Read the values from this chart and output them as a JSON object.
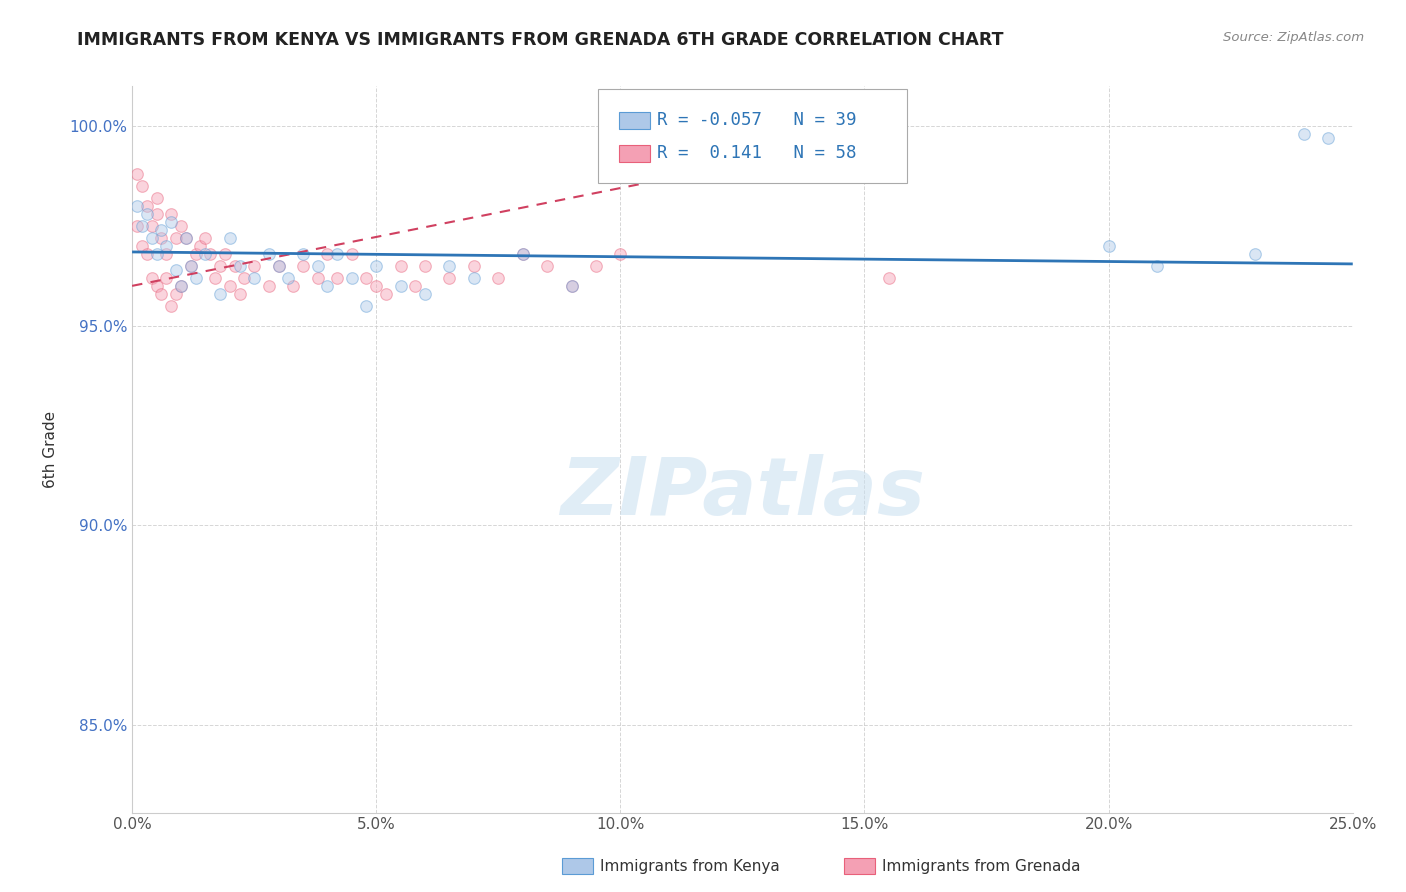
{
  "title": "IMMIGRANTS FROM KENYA VS IMMIGRANTS FROM GRENADA 6TH GRADE CORRELATION CHART",
  "source": "Source: ZipAtlas.com",
  "ylabel": "6th Grade",
  "xlim": [
    0.0,
    0.25
  ],
  "ylim": [
    0.828,
    1.01
  ],
  "x_ticks": [
    0.0,
    0.05,
    0.1,
    0.15,
    0.2,
    0.25
  ],
  "x_tick_labels": [
    "0.0%",
    "5.0%",
    "10.0%",
    "15.0%",
    "20.0%",
    "25.0%"
  ],
  "y_ticks": [
    0.85,
    0.9,
    0.95,
    1.0
  ],
  "y_tick_labels": [
    "85.0%",
    "90.0%",
    "95.0%",
    "100.0%"
  ],
  "kenya_color": "#5b9bd5",
  "kenya_fill": "#aec8e8",
  "grenada_color": "#e8607a",
  "grenada_fill": "#f4a0b4",
  "kenya_R": -0.057,
  "kenya_N": 39,
  "grenada_R": 0.141,
  "grenada_N": 58,
  "kenya_scatter_x": [
    0.001,
    0.002,
    0.003,
    0.004,
    0.005,
    0.006,
    0.007,
    0.008,
    0.009,
    0.01,
    0.011,
    0.012,
    0.013,
    0.015,
    0.018,
    0.02,
    0.022,
    0.025,
    0.028,
    0.03,
    0.032,
    0.035,
    0.038,
    0.04,
    0.042,
    0.045,
    0.048,
    0.05,
    0.055,
    0.06,
    0.065,
    0.07,
    0.08,
    0.09,
    0.2,
    0.21,
    0.23,
    0.24,
    0.245
  ],
  "kenya_scatter_y": [
    0.98,
    0.975,
    0.978,
    0.972,
    0.968,
    0.974,
    0.97,
    0.976,
    0.964,
    0.96,
    0.972,
    0.965,
    0.962,
    0.968,
    0.958,
    0.972,
    0.965,
    0.962,
    0.968,
    0.965,
    0.962,
    0.968,
    0.965,
    0.96,
    0.968,
    0.962,
    0.955,
    0.965,
    0.96,
    0.958,
    0.965,
    0.962,
    0.968,
    0.96,
    0.97,
    0.965,
    0.968,
    0.998,
    0.997
  ],
  "grenada_scatter_x": [
    0.001,
    0.001,
    0.002,
    0.002,
    0.003,
    0.003,
    0.004,
    0.004,
    0.005,
    0.005,
    0.005,
    0.006,
    0.006,
    0.007,
    0.007,
    0.008,
    0.008,
    0.009,
    0.009,
    0.01,
    0.01,
    0.011,
    0.012,
    0.013,
    0.014,
    0.015,
    0.016,
    0.017,
    0.018,
    0.019,
    0.02,
    0.021,
    0.022,
    0.023,
    0.025,
    0.028,
    0.03,
    0.033,
    0.035,
    0.038,
    0.04,
    0.042,
    0.045,
    0.048,
    0.05,
    0.052,
    0.055,
    0.058,
    0.06,
    0.065,
    0.07,
    0.075,
    0.08,
    0.085,
    0.09,
    0.095,
    0.1,
    0.155
  ],
  "grenada_scatter_y": [
    0.988,
    0.975,
    0.985,
    0.97,
    0.98,
    0.968,
    0.975,
    0.962,
    0.982,
    0.978,
    0.96,
    0.972,
    0.958,
    0.968,
    0.962,
    0.978,
    0.955,
    0.972,
    0.958,
    0.975,
    0.96,
    0.972,
    0.965,
    0.968,
    0.97,
    0.972,
    0.968,
    0.962,
    0.965,
    0.968,
    0.96,
    0.965,
    0.958,
    0.962,
    0.965,
    0.96,
    0.965,
    0.96,
    0.965,
    0.962,
    0.968,
    0.962,
    0.968,
    0.962,
    0.96,
    0.958,
    0.965,
    0.96,
    0.965,
    0.962,
    0.965,
    0.962,
    0.968,
    0.965,
    0.96,
    0.965,
    0.968,
    0.962
  ],
  "kenya_trendline_y0": 0.9685,
  "kenya_trendline_y1": 0.9655,
  "grenada_trendline_x0": 0.0,
  "grenada_trendline_y0": 0.96,
  "grenada_trendline_x1": 0.155,
  "grenada_trendline_y1": 0.998,
  "watermark": "ZIPatlas",
  "background_color": "#ffffff",
  "grid_color": "#cccccc",
  "marker_size": 70,
  "marker_alpha": 0.45
}
